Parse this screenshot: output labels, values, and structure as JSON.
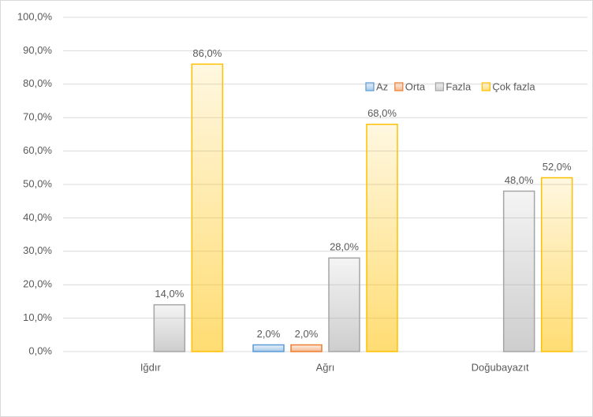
{
  "chart_data": {
    "type": "bar",
    "categories": [
      "Iğdır",
      "Ağrı",
      "Doğubayazıt"
    ],
    "series": [
      {
        "name": "Az",
        "color": "#5b9bd5",
        "values": [
          null,
          2,
          null
        ],
        "value_labels": [
          null,
          "2,0%",
          null
        ]
      },
      {
        "name": "Orta",
        "color": "#ed7d31",
        "values": [
          null,
          2,
          null
        ],
        "value_labels": [
          null,
          "2,0%",
          null
        ]
      },
      {
        "name": "Fazla",
        "color": "#a5a5a5",
        "values": [
          14,
          28,
          48
        ],
        "value_labels": [
          "14,0%",
          "28,0%",
          "48,0%"
        ]
      },
      {
        "name": "Çok fazla",
        "color": "#ffc000",
        "values": [
          86,
          68,
          52
        ],
        "value_labels": [
          "86,0%",
          "68,0%",
          "52,0%"
        ]
      }
    ],
    "ylim": [
      0,
      100
    ],
    "yticks": [
      {
        "value": 0,
        "label": "0,0%"
      },
      {
        "value": 10,
        "label": "10,0%"
      },
      {
        "value": 20,
        "label": "20,0%"
      },
      {
        "value": 30,
        "label": "30,0%"
      },
      {
        "value": 40,
        "label": "40,0%"
      },
      {
        "value": 50,
        "label": "50,0%"
      },
      {
        "value": 60,
        "label": "60,0%"
      },
      {
        "value": 70,
        "label": "70,0%"
      },
      {
        "value": 80,
        "label": "80,0%"
      },
      {
        "value": 90,
        "label": "90,0%"
      },
      {
        "value": 100,
        "label": "100,0%"
      }
    ],
    "grid": true,
    "legend": "top-right"
  }
}
